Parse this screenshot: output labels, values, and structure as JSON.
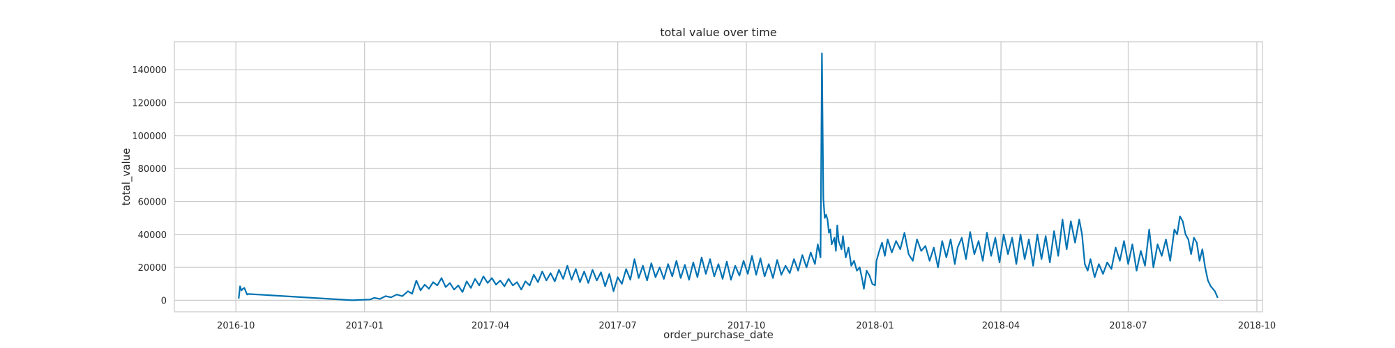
{
  "chart_data": {
    "type": "line",
    "title": "total value over time",
    "xlabel": "order_purchase_date",
    "ylabel": "total_value",
    "xlim": [
      "2016-08-18",
      "2018-10-05"
    ],
    "ylim": [
      -7000,
      157000
    ],
    "grid": true,
    "legend": "none",
    "line_color": "#0072b2",
    "x_ticks": [
      "2016-10-01",
      "2017-01-01",
      "2017-04-01",
      "2017-07-01",
      "2017-10-01",
      "2018-01-01",
      "2018-04-01",
      "2018-07-01",
      "2018-10-01"
    ],
    "x_tick_labels": [
      "2016-10",
      "2017-01",
      "2017-04",
      "2017-07",
      "2017-10",
      "2018-01",
      "2018-04",
      "2018-07",
      "2018-10"
    ],
    "y_ticks": [
      0,
      20000,
      40000,
      60000,
      80000,
      100000,
      120000,
      140000
    ],
    "y_tick_labels": [
      "0",
      "20000",
      "40000",
      "60000",
      "80000",
      "100000",
      "120000",
      "140000"
    ],
    "series": [
      {
        "points": [
          [
            "2016-10-03",
            1000
          ],
          [
            "2016-10-04",
            8500
          ],
          [
            "2016-10-05",
            6000
          ],
          [
            "2016-10-06",
            7000
          ],
          [
            "2016-10-07",
            7500
          ],
          [
            "2016-10-08",
            5500
          ],
          [
            "2016-10-09",
            3500
          ],
          [
            "2016-10-10",
            3800
          ],
          [
            "2016-12-23",
            0
          ],
          [
            "2017-01-05",
            500
          ],
          [
            "2017-01-08",
            1500
          ],
          [
            "2017-01-12",
            800
          ],
          [
            "2017-01-16",
            2500
          ],
          [
            "2017-01-20",
            1800
          ],
          [
            "2017-01-24",
            3500
          ],
          [
            "2017-01-28",
            2500
          ],
          [
            "2017-02-01",
            5500
          ],
          [
            "2017-02-04",
            4000
          ],
          [
            "2017-02-07",
            12000
          ],
          [
            "2017-02-10",
            6000
          ],
          [
            "2017-02-13",
            9500
          ],
          [
            "2017-02-16",
            7000
          ],
          [
            "2017-02-19",
            11000
          ],
          [
            "2017-02-22",
            9000
          ],
          [
            "2017-02-25",
            13500
          ],
          [
            "2017-02-28",
            8000
          ],
          [
            "2017-03-03",
            10500
          ],
          [
            "2017-03-06",
            6500
          ],
          [
            "2017-03-09",
            9000
          ],
          [
            "2017-03-12",
            5000
          ],
          [
            "2017-03-15",
            11500
          ],
          [
            "2017-03-18",
            7500
          ],
          [
            "2017-03-21",
            13000
          ],
          [
            "2017-03-24",
            9000
          ],
          [
            "2017-03-27",
            14500
          ],
          [
            "2017-03-30",
            10500
          ],
          [
            "2017-04-02",
            13500
          ],
          [
            "2017-04-05",
            9500
          ],
          [
            "2017-04-08",
            12000
          ],
          [
            "2017-04-11",
            8500
          ],
          [
            "2017-04-14",
            13000
          ],
          [
            "2017-04-17",
            9000
          ],
          [
            "2017-04-20",
            11000
          ],
          [
            "2017-04-23",
            6500
          ],
          [
            "2017-04-26",
            11500
          ],
          [
            "2017-04-29",
            9000
          ],
          [
            "2017-05-02",
            15500
          ],
          [
            "2017-05-05",
            11000
          ],
          [
            "2017-05-08",
            17500
          ],
          [
            "2017-05-11",
            12000
          ],
          [
            "2017-05-14",
            16500
          ],
          [
            "2017-05-17",
            11500
          ],
          [
            "2017-05-20",
            18500
          ],
          [
            "2017-05-23",
            13000
          ],
          [
            "2017-05-26",
            21000
          ],
          [
            "2017-05-29",
            12500
          ],
          [
            "2017-06-01",
            19000
          ],
          [
            "2017-06-04",
            11000
          ],
          [
            "2017-06-07",
            17500
          ],
          [
            "2017-06-10",
            10500
          ],
          [
            "2017-06-13",
            18500
          ],
          [
            "2017-06-16",
            12000
          ],
          [
            "2017-06-19",
            17000
          ],
          [
            "2017-06-22",
            8500
          ],
          [
            "2017-06-25",
            16000
          ],
          [
            "2017-06-28",
            5500
          ],
          [
            "2017-07-01",
            14000
          ],
          [
            "2017-07-04",
            10000
          ],
          [
            "2017-07-07",
            19000
          ],
          [
            "2017-07-10",
            12500
          ],
          [
            "2017-07-13",
            25000
          ],
          [
            "2017-07-16",
            13500
          ],
          [
            "2017-07-19",
            21000
          ],
          [
            "2017-07-22",
            12000
          ],
          [
            "2017-07-25",
            22500
          ],
          [
            "2017-07-28",
            14000
          ],
          [
            "2017-07-31",
            20000
          ],
          [
            "2017-08-03",
            13000
          ],
          [
            "2017-08-06",
            22000
          ],
          [
            "2017-08-09",
            14500
          ],
          [
            "2017-08-12",
            24000
          ],
          [
            "2017-08-15",
            13500
          ],
          [
            "2017-08-18",
            21500
          ],
          [
            "2017-08-21",
            12500
          ],
          [
            "2017-08-24",
            23000
          ],
          [
            "2017-08-27",
            14000
          ],
          [
            "2017-08-30",
            26000
          ],
          [
            "2017-09-02",
            16000
          ],
          [
            "2017-09-05",
            25000
          ],
          [
            "2017-09-08",
            14500
          ],
          [
            "2017-09-11",
            22000
          ],
          [
            "2017-09-14",
            13000
          ],
          [
            "2017-09-17",
            23500
          ],
          [
            "2017-09-20",
            12500
          ],
          [
            "2017-09-23",
            21000
          ],
          [
            "2017-09-26",
            15000
          ],
          [
            "2017-09-29",
            24000
          ],
          [
            "2017-10-02",
            16000
          ],
          [
            "2017-10-05",
            27000
          ],
          [
            "2017-10-08",
            15500
          ],
          [
            "2017-10-11",
            25500
          ],
          [
            "2017-10-14",
            14500
          ],
          [
            "2017-10-17",
            22000
          ],
          [
            "2017-10-20",
            13500
          ],
          [
            "2017-10-23",
            24500
          ],
          [
            "2017-10-26",
            15500
          ],
          [
            "2017-10-29",
            21000
          ],
          [
            "2017-11-01",
            16500
          ],
          [
            "2017-11-04",
            25000
          ],
          [
            "2017-11-07",
            18000
          ],
          [
            "2017-11-10",
            27500
          ],
          [
            "2017-11-13",
            20000
          ],
          [
            "2017-11-16",
            29000
          ],
          [
            "2017-11-19",
            22000
          ],
          [
            "2017-11-21",
            34000
          ],
          [
            "2017-11-23",
            26000
          ],
          [
            "2017-11-24",
            150000
          ],
          [
            "2017-11-25",
            62000
          ],
          [
            "2017-11-26",
            50000
          ],
          [
            "2017-11-27",
            52000
          ],
          [
            "2017-11-28",
            49000
          ],
          [
            "2017-11-29",
            41000
          ],
          [
            "2017-11-30",
            43000
          ],
          [
            "2017-12-01",
            34000
          ],
          [
            "2017-12-03",
            38000
          ],
          [
            "2017-12-04",
            30000
          ],
          [
            "2017-12-05",
            45500
          ],
          [
            "2017-12-06",
            36000
          ],
          [
            "2017-12-08",
            31000
          ],
          [
            "2017-12-09",
            39000
          ],
          [
            "2017-12-11",
            26000
          ],
          [
            "2017-12-13",
            32000
          ],
          [
            "2017-12-15",
            21000
          ],
          [
            "2017-12-17",
            24000
          ],
          [
            "2017-12-19",
            18000
          ],
          [
            "2017-12-21",
            20000
          ],
          [
            "2017-12-23",
            12000
          ],
          [
            "2017-12-24",
            7000
          ],
          [
            "2017-12-26",
            18000
          ],
          [
            "2017-12-28",
            15000
          ],
          [
            "2017-12-30",
            10000
          ],
          [
            "2018-01-01",
            9000
          ],
          [
            "2018-01-02",
            24000
          ],
          [
            "2018-01-04",
            30000
          ],
          [
            "2018-01-06",
            35000
          ],
          [
            "2018-01-08",
            27000
          ],
          [
            "2018-01-10",
            37000
          ],
          [
            "2018-01-13",
            29000
          ],
          [
            "2018-01-16",
            36000
          ],
          [
            "2018-01-19",
            31000
          ],
          [
            "2018-01-22",
            41000
          ],
          [
            "2018-01-25",
            28000
          ],
          [
            "2018-01-28",
            24000
          ],
          [
            "2018-01-31",
            37000
          ],
          [
            "2018-02-03",
            30000
          ],
          [
            "2018-02-06",
            33000
          ],
          [
            "2018-02-09",
            24000
          ],
          [
            "2018-02-12",
            32000
          ],
          [
            "2018-02-15",
            20000
          ],
          [
            "2018-02-18",
            36000
          ],
          [
            "2018-02-21",
            26000
          ],
          [
            "2018-02-24",
            37000
          ],
          [
            "2018-02-27",
            22000
          ],
          [
            "2018-03-01",
            32000
          ],
          [
            "2018-03-04",
            38000
          ],
          [
            "2018-03-07",
            25000
          ],
          [
            "2018-03-10",
            41500
          ],
          [
            "2018-03-13",
            28000
          ],
          [
            "2018-03-16",
            36000
          ],
          [
            "2018-03-19",
            24000
          ],
          [
            "2018-03-22",
            41000
          ],
          [
            "2018-03-25",
            27000
          ],
          [
            "2018-03-28",
            38000
          ],
          [
            "2018-03-31",
            23000
          ],
          [
            "2018-04-03",
            40000
          ],
          [
            "2018-04-06",
            28000
          ],
          [
            "2018-04-09",
            38000
          ],
          [
            "2018-04-12",
            22000
          ],
          [
            "2018-04-15",
            40000
          ],
          [
            "2018-04-18",
            25000
          ],
          [
            "2018-04-21",
            37000
          ],
          [
            "2018-04-24",
            21000
          ],
          [
            "2018-04-27",
            40000
          ],
          [
            "2018-04-30",
            25000
          ],
          [
            "2018-05-03",
            39000
          ],
          [
            "2018-05-06",
            23000
          ],
          [
            "2018-05-09",
            42000
          ],
          [
            "2018-05-12",
            27000
          ],
          [
            "2018-05-15",
            49000
          ],
          [
            "2018-05-18",
            31000
          ],
          [
            "2018-05-21",
            48000
          ],
          [
            "2018-05-24",
            35000
          ],
          [
            "2018-05-27",
            49000
          ],
          [
            "2018-05-29",
            40000
          ],
          [
            "2018-05-31",
            22000
          ],
          [
            "2018-06-02",
            18000
          ],
          [
            "2018-06-04",
            25000
          ],
          [
            "2018-06-07",
            14000
          ],
          [
            "2018-06-10",
            22000
          ],
          [
            "2018-06-13",
            16000
          ],
          [
            "2018-06-16",
            23000
          ],
          [
            "2018-06-19",
            19000
          ],
          [
            "2018-06-22",
            32000
          ],
          [
            "2018-06-25",
            24000
          ],
          [
            "2018-06-28",
            36000
          ],
          [
            "2018-07-01",
            22000
          ],
          [
            "2018-07-04",
            34000
          ],
          [
            "2018-07-07",
            18000
          ],
          [
            "2018-07-10",
            30000
          ],
          [
            "2018-07-13",
            21000
          ],
          [
            "2018-07-16",
            43000
          ],
          [
            "2018-07-19",
            20000
          ],
          [
            "2018-07-22",
            34000
          ],
          [
            "2018-07-25",
            27000
          ],
          [
            "2018-07-28",
            37000
          ],
          [
            "2018-07-31",
            24000
          ],
          [
            "2018-08-03",
            43000
          ],
          [
            "2018-08-05",
            40000
          ],
          [
            "2018-08-07",
            51000
          ],
          [
            "2018-08-09",
            48000
          ],
          [
            "2018-08-11",
            40000
          ],
          [
            "2018-08-13",
            37000
          ],
          [
            "2018-08-15",
            28000
          ],
          [
            "2018-08-17",
            38000
          ],
          [
            "2018-08-19",
            35000
          ],
          [
            "2018-08-21",
            24000
          ],
          [
            "2018-08-23",
            31000
          ],
          [
            "2018-08-25",
            20000
          ],
          [
            "2018-08-27",
            12000
          ],
          [
            "2018-08-29",
            8500
          ],
          [
            "2018-09-01",
            5500
          ],
          [
            "2018-09-03",
            1500
          ]
        ]
      }
    ]
  }
}
